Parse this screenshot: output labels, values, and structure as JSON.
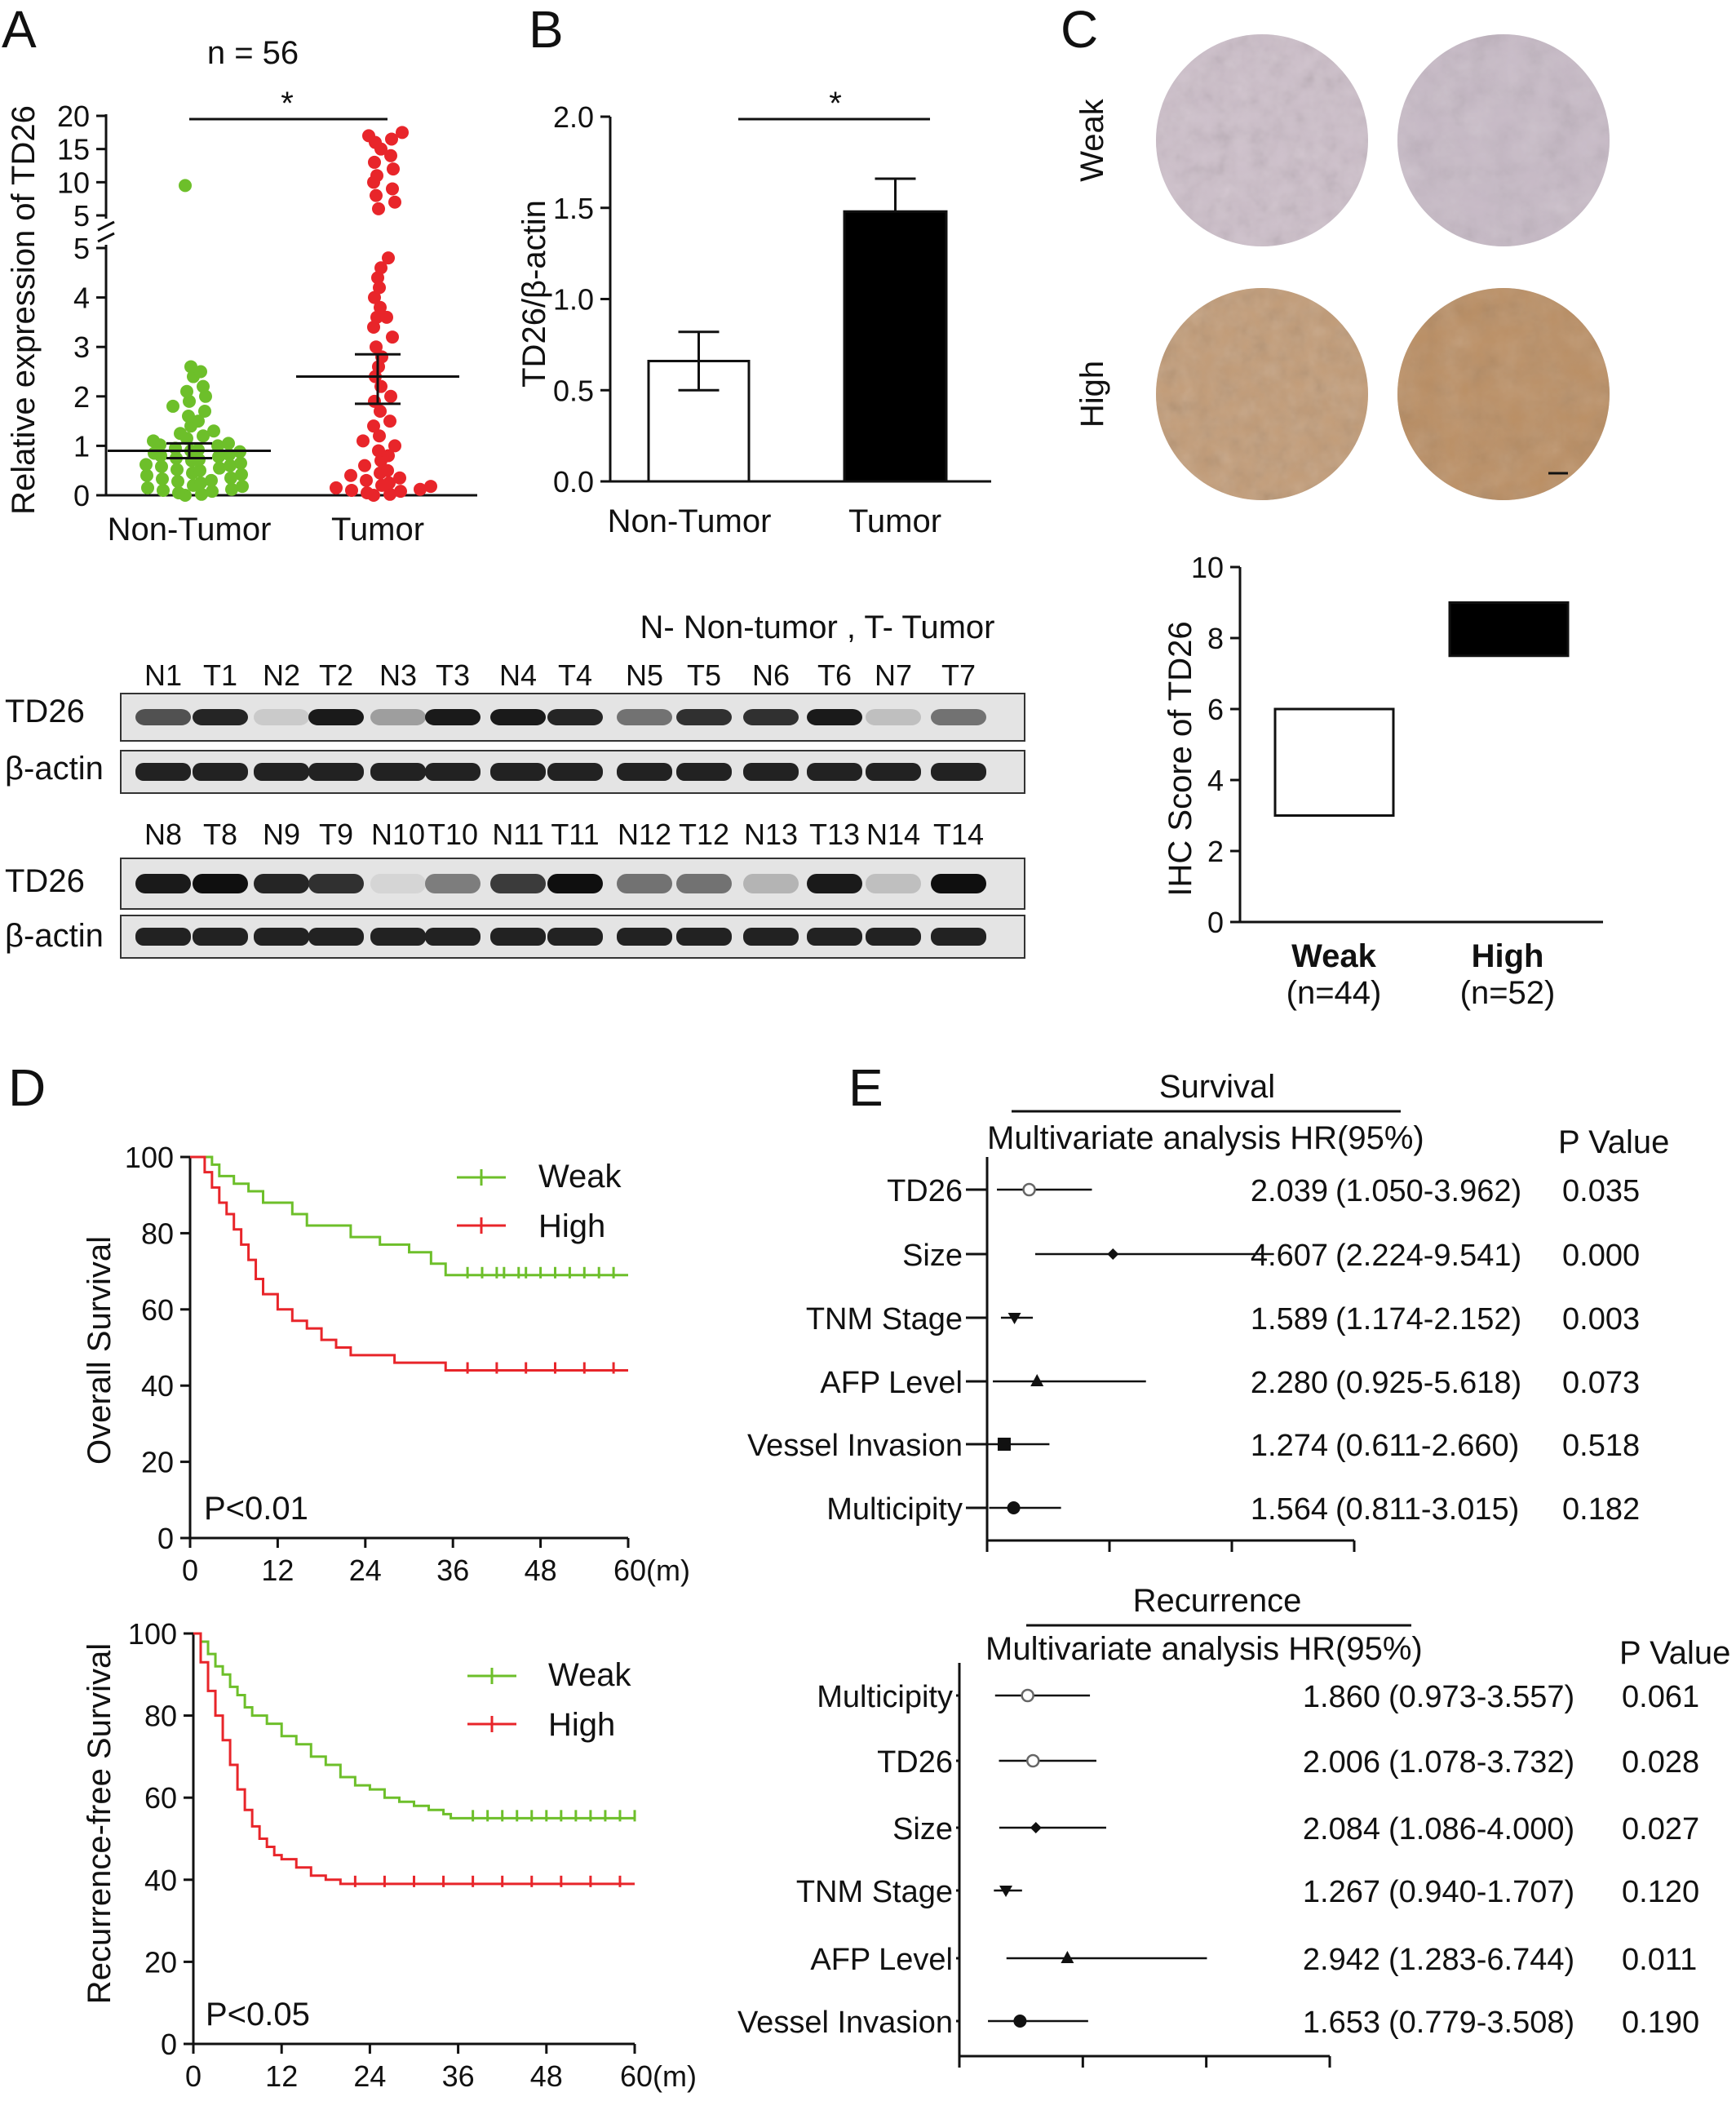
{
  "panels": {
    "A": "A",
    "B": "B",
    "C": "C",
    "D": "D",
    "E": "E"
  },
  "colors": {
    "green": "#6dbf2a",
    "red": "#e8252a",
    "black": "#000000"
  },
  "blot": {
    "legend": "N- Non-tumor , T- Tumor",
    "row_labels": [
      "TD26",
      "β-actin"
    ],
    "lanes_top": [
      "N1",
      "T1",
      "N2",
      "T2",
      "N3",
      "T3",
      "N4",
      "T4",
      "N5",
      "T5",
      "N6",
      "T6",
      "N7",
      "T7"
    ],
    "lanes_bottom": [
      "N8",
      "T8",
      "N9",
      "T9",
      "N10",
      "T10",
      "N11",
      "T11",
      "N12",
      "T12",
      "N13",
      "T13",
      "N14",
      "T14"
    ],
    "td26_intensity_top": [
      0.7,
      0.9,
      0.15,
      0.95,
      0.35,
      0.95,
      0.95,
      0.9,
      0.55,
      0.85,
      0.85,
      0.95,
      0.2,
      0.55
    ],
    "td26_intensity_bottom": [
      0.95,
      1.0,
      0.9,
      0.85,
      0.1,
      0.5,
      0.8,
      1.0,
      0.55,
      0.55,
      0.25,
      0.95,
      0.2,
      1.0
    ]
  },
  "ihc": {
    "rows": [
      "Weak",
      "High"
    ]
  },
  "chart_data": [
    {
      "id": "A",
      "type": "scatter",
      "title": "n = 56",
      "ylabel": "Relative expression of TD26",
      "categories": [
        "Non-Tumor",
        "Tumor"
      ],
      "significance": "*",
      "yticks_lower": [
        "0",
        "1",
        "2",
        "3",
        "4",
        "5"
      ],
      "yticks_upper": [
        "5",
        "10",
        "15",
        "20"
      ],
      "series": [
        {
          "name": "Non-Tumor",
          "color": "#6dbf2a",
          "mean": 0.9,
          "sem_low": 0.75,
          "sem_high": 1.05,
          "values": [
            0.0,
            0.02,
            0.05,
            0.08,
            0.1,
            0.12,
            0.15,
            0.18,
            0.2,
            0.25,
            0.28,
            0.3,
            0.33,
            0.35,
            0.4,
            0.42,
            0.45,
            0.5,
            0.52,
            0.55,
            0.58,
            0.6,
            0.62,
            0.65,
            0.7,
            0.72,
            0.75,
            0.78,
            0.8,
            0.82,
            0.85,
            0.88,
            0.9,
            0.92,
            0.95,
            1.0,
            1.02,
            1.05,
            1.1,
            1.15,
            1.2,
            1.25,
            1.3,
            1.4,
            1.5,
            1.6,
            1.7,
            1.8,
            1.9,
            2.0,
            2.1,
            2.2,
            2.4,
            2.5,
            2.6,
            9.5
          ]
        },
        {
          "name": "Tumor",
          "color": "#e8252a",
          "mean": 2.4,
          "sem_low": 1.85,
          "sem_high": 2.85,
          "values": [
            0.0,
            0.02,
            0.05,
            0.08,
            0.1,
            0.12,
            0.15,
            0.18,
            0.2,
            0.25,
            0.3,
            0.35,
            0.4,
            0.45,
            0.5,
            0.6,
            0.7,
            0.8,
            0.9,
            1.0,
            1.1,
            1.2,
            1.4,
            1.5,
            1.7,
            1.9,
            2.0,
            2.2,
            2.4,
            2.6,
            2.8,
            3.0,
            3.2,
            3.4,
            3.6,
            3.8,
            4.0,
            4.4,
            4.6,
            4.8,
            6.0,
            7.0,
            8.0,
            9.0,
            10.0,
            11.0,
            12.0,
            13.0,
            14.0,
            15.0,
            16.0,
            16.5,
            17.0,
            17.5,
            4.2,
            3.6
          ]
        }
      ]
    },
    {
      "id": "B",
      "type": "bar",
      "ylabel": "TD26/β-actin",
      "categories": [
        "Non-Tumor",
        "Tumor"
      ],
      "values": [
        0.66,
        1.48
      ],
      "error": [
        0.16,
        0.18
      ],
      "ylim": [
        0,
        2.0
      ],
      "yticks": [
        "0.0",
        "0.5",
        "1.0",
        "1.5",
        "2.0"
      ],
      "significance": "*"
    },
    {
      "id": "C",
      "type": "bar",
      "ylabel": "IHC Score of TD26",
      "categories": [
        "Weak",
        "High"
      ],
      "sublabels": [
        "(n=44)",
        "(n=52)"
      ],
      "ranges": [
        [
          3,
          6
        ],
        [
          7.5,
          9
        ]
      ],
      "ylim": [
        0,
        10
      ],
      "yticks": [
        "0",
        "2",
        "4",
        "6",
        "8",
        "10"
      ]
    },
    {
      "id": "D1",
      "type": "line",
      "ylabel": "Overall Survival",
      "xticks": [
        "0",
        "12",
        "24",
        "36",
        "48",
        "60(m)"
      ],
      "yticks": [
        "0",
        "20",
        "40",
        "60",
        "80",
        "100"
      ],
      "pvalue": "P<0.01",
      "series": [
        {
          "name": "Weak",
          "color": "#6dbf2a",
          "x": [
            0,
            3,
            4,
            6,
            8,
            10,
            14,
            16,
            18,
            22,
            26,
            30,
            33,
            35,
            60
          ],
          "y": [
            100,
            98,
            95,
            93,
            91,
            88,
            85,
            82,
            82,
            79,
            77,
            75,
            72,
            69,
            69
          ],
          "censor": [
            38,
            40,
            42,
            43,
            45,
            46,
            48,
            50,
            52,
            54,
            56,
            58
          ]
        },
        {
          "name": "High",
          "color": "#e8252a",
          "x": [
            0,
            2,
            3,
            4,
            5,
            6,
            7,
            8,
            9,
            10,
            12,
            14,
            16,
            18,
            20,
            22,
            24,
            28,
            32,
            35,
            60
          ],
          "y": [
            100,
            96,
            92,
            88,
            85,
            81,
            77,
            73,
            68,
            64,
            60,
            57,
            55,
            52,
            50,
            48,
            48,
            46,
            46,
            44,
            44
          ],
          "censor": [
            38,
            42,
            46,
            50,
            54,
            58
          ]
        }
      ]
    },
    {
      "id": "D2",
      "type": "line",
      "ylabel": "Recurrence-free Survival",
      "xticks": [
        "0",
        "12",
        "24",
        "36",
        "48",
        "60(m)"
      ],
      "yticks": [
        "0",
        "20",
        "40",
        "60",
        "80",
        "100"
      ],
      "pvalue": "P<0.05",
      "series": [
        {
          "name": "Weak",
          "color": "#6dbf2a",
          "x": [
            0,
            1,
            2,
            3,
            4,
            5,
            6,
            7,
            8,
            10,
            12,
            14,
            16,
            18,
            20,
            22,
            24,
            26,
            28,
            30,
            32,
            34,
            35,
            60
          ],
          "y": [
            100,
            98,
            95,
            92,
            90,
            87,
            85,
            82,
            80,
            78,
            75,
            73,
            70,
            68,
            65,
            63,
            62,
            60,
            59,
            58,
            57,
            56,
            55,
            55
          ],
          "censor": [
            38,
            40,
            42,
            44,
            46,
            48,
            50,
            52,
            54,
            56,
            58,
            60
          ]
        },
        {
          "name": "High",
          "color": "#e8252a",
          "x": [
            0,
            1,
            2,
            3,
            4,
            5,
            6,
            7,
            8,
            9,
            10,
            11,
            12,
            14,
            16,
            18,
            20,
            22,
            24,
            60
          ],
          "y": [
            100,
            93,
            86,
            80,
            74,
            68,
            62,
            57,
            53,
            50,
            48,
            46,
            45,
            43,
            41,
            40,
            39,
            39,
            39,
            39
          ],
          "censor": [
            22,
            26,
            30,
            34,
            38,
            42,
            46,
            50,
            54,
            58
          ]
        }
      ]
    },
    {
      "id": "E1",
      "type": "table",
      "title": "Survival",
      "subtitle": "Multivariate analysis HR(95%)",
      "p_header": "P Value",
      "rows": [
        {
          "label": "TD26",
          "hr": "2.039",
          "ci": "(1.050-3.962)",
          "p": "0.035",
          "low": 1.05,
          "high": 3.962,
          "est": 2.039,
          "marker": "circle-open"
        },
        {
          "label": "Size",
          "hr": "4.607",
          "ci": "(2.224-9.541)",
          "p": "0.000",
          "low": 2.224,
          "high": 9.541,
          "est": 4.607,
          "marker": "diamond"
        },
        {
          "label": "TNM Stage",
          "hr": "1.589",
          "ci": "(1.174-2.152)",
          "p": "0.003",
          "low": 1.174,
          "high": 2.152,
          "est": 1.589,
          "marker": "triangle-down"
        },
        {
          "label": "AFP Level",
          "hr": "2.280",
          "ci": "(0.925-5.618)",
          "p": "0.073",
          "low": 0.925,
          "high": 5.618,
          "est": 2.28,
          "marker": "triangle-up"
        },
        {
          "label": "Vessel Invasion",
          "hr": "1.274",
          "ci": "(0.611-2.660)",
          "p": "0.518",
          "low": 0.611,
          "high": 2.66,
          "est": 1.274,
          "marker": "square"
        },
        {
          "label": "Multicipity",
          "hr": "1.564",
          "ci": "(0.811-3.015)",
          "p": "0.182",
          "low": 0.811,
          "high": 3.015,
          "est": 1.564,
          "marker": "circle"
        }
      ]
    },
    {
      "id": "E2",
      "type": "table",
      "title": "Recurrence",
      "subtitle": "Multivariate analysis HR(95%)",
      "p_header": "P Value",
      "rows": [
        {
          "label": "Multicipity",
          "hr": "1.860",
          "ci": "(0.973-3.557)",
          "p": "0.061",
          "low": 0.973,
          "high": 3.557,
          "est": 1.86,
          "marker": "circle-open"
        },
        {
          "label": "TD26",
          "hr": "2.006",
          "ci": "(1.078-3.732)",
          "p": "0.028",
          "low": 1.078,
          "high": 3.732,
          "est": 2.006,
          "marker": "circle-open"
        },
        {
          "label": "Size",
          "hr": "2.084",
          "ci": "(1.086-4.000)",
          "p": "0.027",
          "low": 1.086,
          "high": 4.0,
          "est": 2.084,
          "marker": "diamond"
        },
        {
          "label": "TNM Stage",
          "hr": "1.267",
          "ci": "(0.940-1.707)",
          "p": "0.120",
          "low": 0.94,
          "high": 1.707,
          "est": 1.267,
          "marker": "triangle-down"
        },
        {
          "label": "AFP Level",
          "hr": "2.942",
          "ci": "(1.283-6.744)",
          "p": "0.011",
          "low": 1.283,
          "high": 6.744,
          "est": 2.942,
          "marker": "triangle-up"
        },
        {
          "label": "Vessel Invasion",
          "hr": "1.653",
          "ci": "(0.779-3.508)",
          "p": "0.190",
          "low": 0.779,
          "high": 3.508,
          "est": 1.653,
          "marker": "circle"
        }
      ]
    }
  ]
}
